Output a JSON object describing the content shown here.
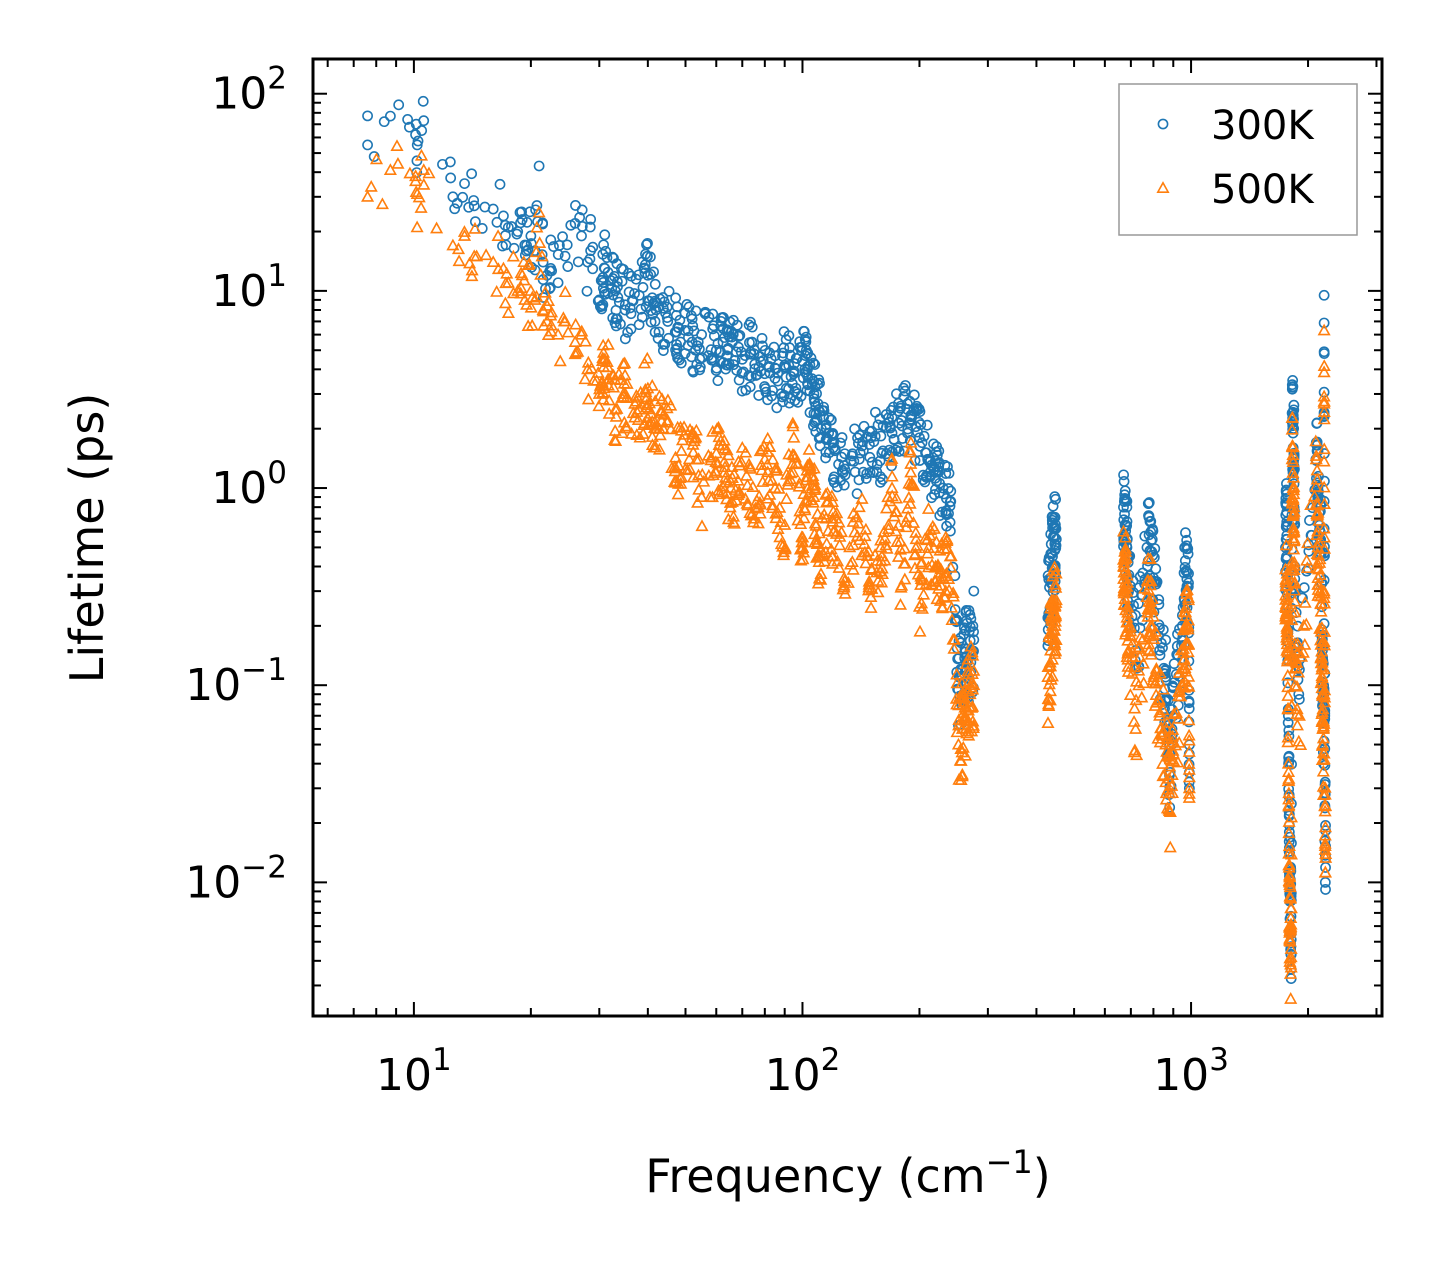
{
  "chart_data": {
    "type": "scatter",
    "xscale": "log",
    "yscale": "log",
    "xlim": [
      5.5,
      3100
    ],
    "ylim": [
      0.0021,
      150
    ],
    "xlabel": {
      "text": "Frequency (cm",
      "sup": "−1",
      "suffix": ")"
    },
    "ylabel": "Lifetime (ps)",
    "x_ticks": [
      {
        "base": "10",
        "exp": "1",
        "value": 10
      },
      {
        "base": "10",
        "exp": "2",
        "value": 100
      },
      {
        "base": "10",
        "exp": "3",
        "value": 1000
      }
    ],
    "y_ticks": [
      {
        "base": "10",
        "exp": "2",
        "value": 100
      },
      {
        "base": "10",
        "exp": "1",
        "value": 10
      },
      {
        "base": "10",
        "exp": "0",
        "value": 1
      },
      {
        "base": "10",
        "exp": "−1",
        "value": 0.1
      },
      {
        "base": "10",
        "exp": "−2",
        "value": 0.01
      }
    ],
    "legend": {
      "location": "top-right"
    },
    "series": [
      {
        "name": "300K",
        "marker": "circle",
        "color": "#1f77b4",
        "points": [
          [
            7.6,
            55
          ],
          [
            8.7,
            77
          ],
          [
            10.1,
            62
          ],
          [
            10.2,
            55
          ],
          [
            10.6,
            73
          ],
          [
            12.6,
            30
          ],
          [
            13.5,
            35
          ],
          [
            14.3,
            27
          ],
          [
            16.0,
            26
          ],
          [
            17.0,
            24
          ],
          [
            17.5,
            21
          ],
          [
            18.5,
            20
          ],
          [
            19.0,
            23
          ],
          [
            19.5,
            17
          ],
          [
            20.0,
            19
          ],
          [
            20.5,
            16
          ],
          [
            21.0,
            43
          ],
          [
            21.5,
            14
          ],
          [
            22.0,
            12
          ],
          [
            22.5,
            13
          ],
          [
            23.5,
            11
          ],
          [
            24.5,
            15
          ],
          [
            26.0,
            22
          ],
          [
            27.0,
            19
          ],
          [
            28.0,
            14
          ],
          [
            28.5,
            16
          ],
          [
            30.0,
            9
          ],
          [
            31.0,
            13
          ],
          [
            33.0,
            10
          ],
          [
            35.0,
            8.5
          ],
          [
            38.0,
            9.5
          ],
          [
            40.0,
            12
          ],
          [
            42.0,
            8
          ],
          [
            45.0,
            7
          ],
          [
            48.0,
            6.5
          ],
          [
            52.0,
            5.5
          ],
          [
            55.0,
            6
          ],
          [
            60.0,
            5
          ],
          [
            63.0,
            5.8
          ],
          [
            66.0,
            5.5
          ],
          [
            70.0,
            4.5
          ],
          [
            75.0,
            4.8
          ],
          [
            80.0,
            3.8
          ],
          [
            85.0,
            3.6
          ],
          [
            90.0,
            4.2
          ],
          [
            95.0,
            3.8
          ],
          [
            100.0,
            4.4
          ],
          [
            103.0,
            4.0
          ],
          [
            107.0,
            3.0
          ],
          [
            110.0,
            2.5
          ],
          [
            115.0,
            2.0
          ],
          [
            120.0,
            1.6
          ],
          [
            128.0,
            1.3
          ],
          [
            140.0,
            1.4
          ],
          [
            150.0,
            1.8
          ],
          [
            160.0,
            1.5
          ],
          [
            170.0,
            1.9
          ],
          [
            180.0,
            2.2
          ],
          [
            190.0,
            2.3
          ],
          [
            200.0,
            1.8
          ],
          [
            210.0,
            1.4
          ],
          [
            220.0,
            1.2
          ],
          [
            230.0,
            1.0
          ],
          [
            240.0,
            0.85
          ],
          [
            252.0,
            0.095
          ],
          [
            258.0,
            0.12
          ],
          [
            264.0,
            0.14
          ],
          [
            270.0,
            0.15
          ],
          [
            276.0,
            0.17
          ],
          [
            428.0,
            0.22
          ],
          [
            435.0,
            0.35
          ],
          [
            440.0,
            0.45
          ],
          [
            446.0,
            0.52
          ],
          [
            450.0,
            0.55
          ],
          [
            670.0,
            0.8
          ],
          [
            676.0,
            0.65
          ],
          [
            684.0,
            0.5
          ],
          [
            690.0,
            0.3
          ],
          [
            720.0,
            0.15
          ],
          [
            770.0,
            0.5
          ],
          [
            785.0,
            0.48
          ],
          [
            800.0,
            0.35
          ],
          [
            830.0,
            0.15
          ],
          [
            860.0,
            0.11
          ],
          [
            880.0,
            0.035
          ],
          [
            900.0,
            0.07
          ],
          [
            950.0,
            0.2
          ],
          [
            970.0,
            0.38
          ],
          [
            985.0,
            0.33
          ],
          [
            990.0,
            0.03
          ],
          [
            1750.0,
            0.5
          ],
          [
            1760.0,
            0.65
          ],
          [
            1770.0,
            0.4
          ],
          [
            1780.0,
            0.07
          ],
          [
            1790.0,
            0.018
          ],
          [
            1800.0,
            0.0092
          ],
          [
            1810.0,
            0.0055
          ],
          [
            1820.0,
            2.4
          ],
          [
            1830.0,
            1.9
          ],
          [
            1840.0,
            1.5
          ],
          [
            1850.0,
            0.3
          ],
          [
            1900.0,
            0.12
          ],
          [
            2100.0,
            1.7
          ],
          [
            2120.0,
            0.9
          ],
          [
            2150.0,
            0.6
          ],
          [
            2170.0,
            0.25
          ],
          [
            2180.0,
            0.1
          ],
          [
            2200.0,
            0.052
          ],
          [
            2210.0,
            0.0245
          ],
          [
            2220.0,
            0.0133
          ],
          [
            2200.0,
            9.5
          ]
        ]
      },
      {
        "name": "500K",
        "marker": "triangle",
        "color": "#ff7f0e",
        "points": [
          [
            7.6,
            30
          ],
          [
            8.7,
            41
          ],
          [
            10.1,
            36
          ],
          [
            10.2,
            31
          ],
          [
            10.6,
            41
          ],
          [
            12.6,
            17
          ],
          [
            13.5,
            19
          ],
          [
            14.3,
            15
          ],
          [
            16.0,
            14
          ],
          [
            17.0,
            13
          ],
          [
            17.5,
            11
          ],
          [
            18.5,
            10
          ],
          [
            19.0,
            12
          ],
          [
            19.5,
            8.5
          ],
          [
            20.0,
            10
          ],
          [
            20.5,
            9
          ],
          [
            21.0,
            25
          ],
          [
            21.5,
            8
          ],
          [
            22.0,
            7
          ],
          [
            22.5,
            7.5
          ],
          [
            23.5,
            6
          ],
          [
            24.5,
            7
          ],
          [
            26.0,
            5.5
          ],
          [
            27.0,
            6
          ],
          [
            28.0,
            4
          ],
          [
            29.0,
            3.5
          ],
          [
            30.0,
            3
          ],
          [
            31.0,
            4.5
          ],
          [
            33.0,
            2.5
          ],
          [
            35.0,
            3
          ],
          [
            38.0,
            2.5
          ],
          [
            40.0,
            3.2
          ],
          [
            42.0,
            2
          ],
          [
            45.0,
            2.2
          ],
          [
            48.0,
            1.3
          ],
          [
            52.0,
            1.8
          ],
          [
            55.0,
            0.9
          ],
          [
            60.0,
            1.5
          ],
          [
            63.0,
            1.2
          ],
          [
            66.0,
            0.85
          ],
          [
            70.0,
            1.6
          ],
          [
            75.0,
            0.7
          ],
          [
            80.0,
            1.4
          ],
          [
            85.0,
            1.0
          ],
          [
            90.0,
            0.65
          ],
          [
            95.0,
            1.8
          ],
          [
            100.0,
            0.5
          ],
          [
            103.0,
            1.3
          ],
          [
            107.0,
            0.9
          ],
          [
            110.0,
            0.45
          ],
          [
            115.0,
            0.7
          ],
          [
            120.0,
            0.6
          ],
          [
            128.0,
            0.35
          ],
          [
            140.0,
            0.8
          ],
          [
            150.0,
            0.28
          ],
          [
            160.0,
            0.45
          ],
          [
            170.0,
            1.0
          ],
          [
            180.0,
            0.32
          ],
          [
            190.0,
            1.2
          ],
          [
            200.0,
            0.25
          ],
          [
            210.0,
            0.55
          ],
          [
            220.0,
            0.4
          ],
          [
            230.0,
            0.35
          ],
          [
            240.0,
            0.45
          ],
          [
            252.0,
            0.05
          ],
          [
            258.0,
            0.06
          ],
          [
            264.0,
            0.075
          ],
          [
            270.0,
            0.09
          ],
          [
            276.0,
            0.1
          ],
          [
            428.0,
            0.11
          ],
          [
            435.0,
            0.15
          ],
          [
            440.0,
            0.2
          ],
          [
            446.0,
            0.25
          ],
          [
            450.0,
            0.27
          ],
          [
            670.0,
            0.4
          ],
          [
            676.0,
            0.33
          ],
          [
            684.0,
            0.22
          ],
          [
            690.0,
            0.15
          ],
          [
            720.0,
            0.06
          ],
          [
            770.0,
            0.28
          ],
          [
            785.0,
            0.25
          ],
          [
            800.0,
            0.18
          ],
          [
            830.0,
            0.07
          ],
          [
            860.0,
            0.05
          ],
          [
            880.0,
            0.023
          ],
          [
            900.0,
            0.045
          ],
          [
            950.0,
            0.1
          ],
          [
            970.0,
            0.2
          ],
          [
            985.0,
            0.16
          ],
          [
            990.0,
            0.03
          ],
          [
            1750.0,
            0.25
          ],
          [
            1760.0,
            0.32
          ],
          [
            1770.0,
            0.18
          ],
          [
            1780.0,
            0.04
          ],
          [
            1790.0,
            0.01
          ],
          [
            1800.0,
            0.005
          ],
          [
            1810.0,
            0.0037
          ],
          [
            1820.0,
            1.4
          ],
          [
            1830.0,
            1.0
          ],
          [
            1840.0,
            0.8
          ],
          [
            1850.0,
            0.15
          ],
          [
            1900.0,
            0.07
          ],
          [
            2100.0,
            1.4
          ],
          [
            2120.0,
            0.5
          ],
          [
            2150.0,
            0.3
          ],
          [
            2170.0,
            0.12
          ],
          [
            2180.0,
            0.05
          ],
          [
            2200.0,
            0.045
          ],
          [
            2210.0,
            0.0245
          ],
          [
            2220.0,
            0.0133
          ],
          [
            2200.0,
            6.3
          ]
        ]
      }
    ]
  }
}
